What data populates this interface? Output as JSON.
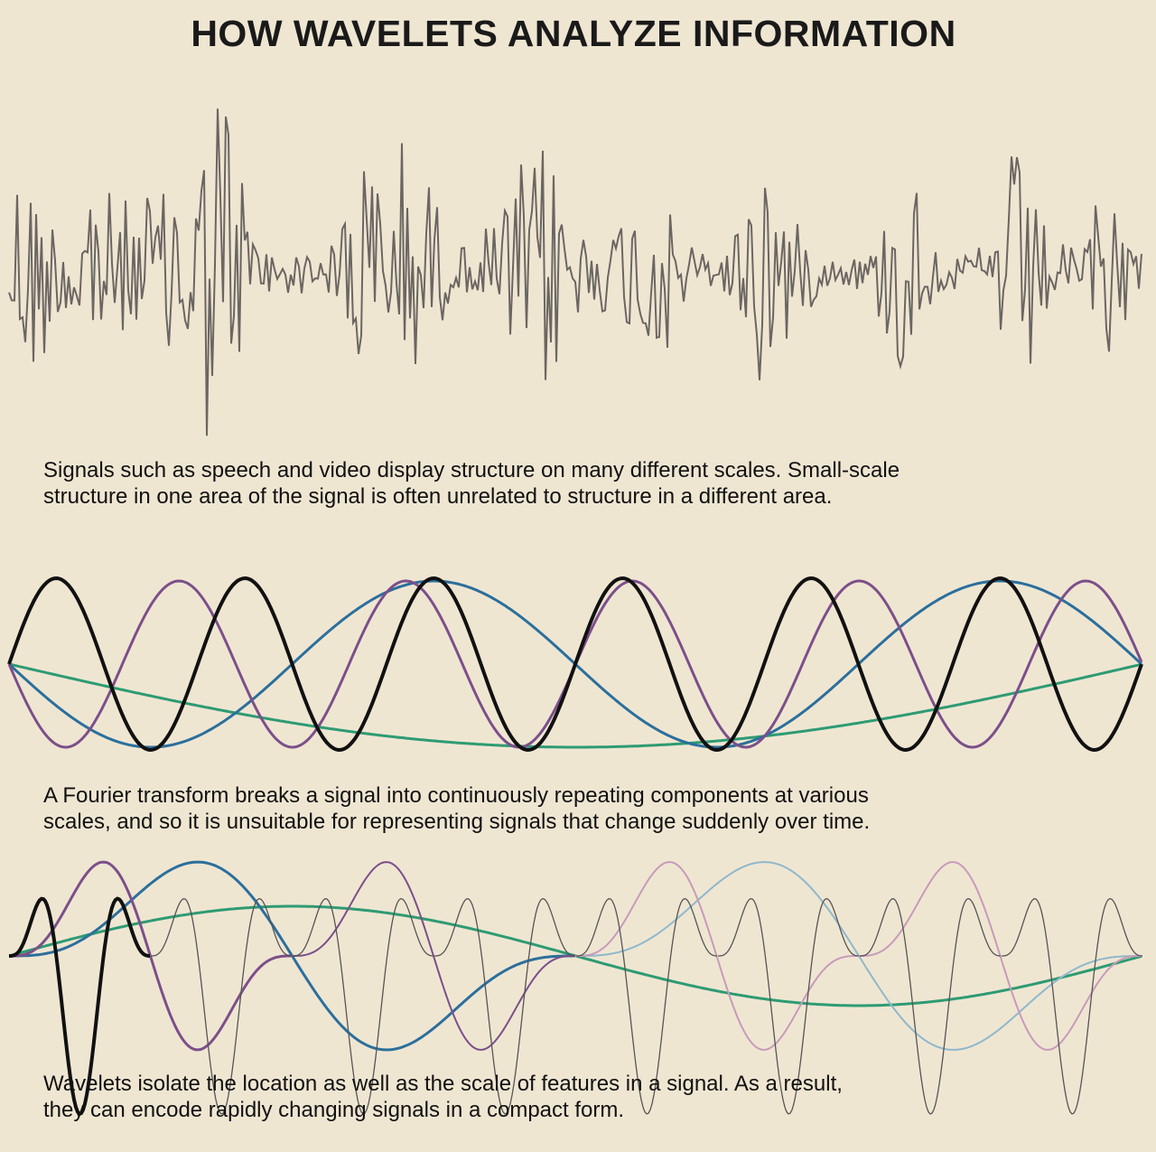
{
  "title": "HOW WAVELETS ANALYZE INFORMATION",
  "captions": [
    [
      "Signals such as speech and video display structure on many different scales. Small-scale",
      "structure in one area of the signal is often unrelated to structure in a different area."
    ],
    [
      "A Fourier transform breaks a signal into continuously repeating components at various",
      "scales, and so it is unsuitable for representing signals that change suddenly over time."
    ],
    [
      "Wavelets isolate the location as well as the scale of features in a signal. As a result,",
      "they can encode rapidly changing signals in a compact form."
    ]
  ]
}
